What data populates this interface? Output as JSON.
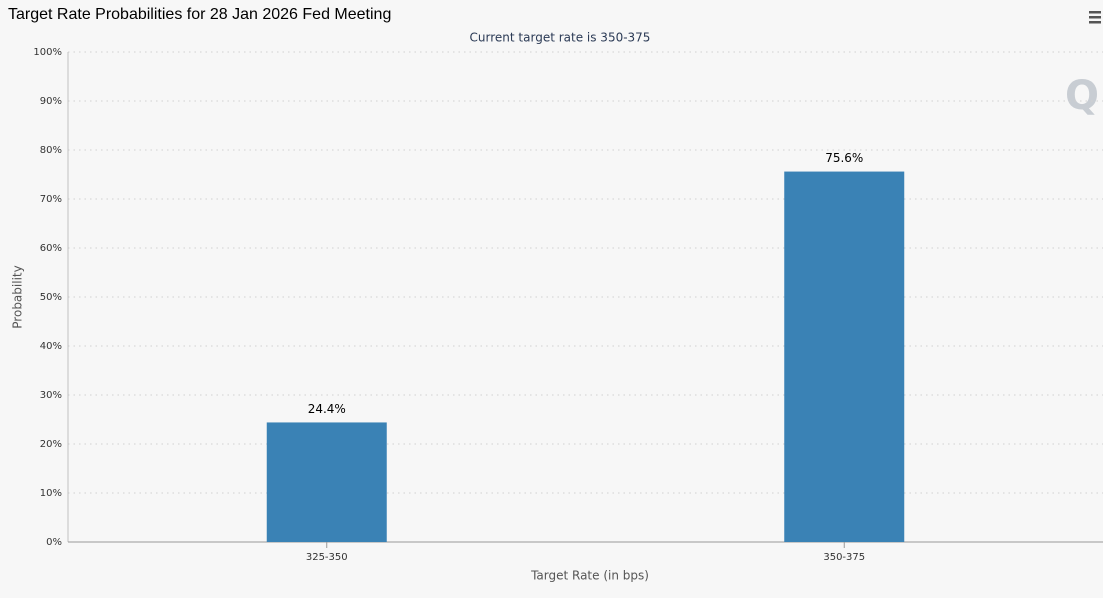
{
  "chart_data": {
    "type": "bar",
    "title": "Target Rate Probabilities for 28 Jan 2026 Fed Meeting",
    "subtitle": "Current target rate is 350-375",
    "x_label": "Target Rate (in bps)",
    "y_label": "Probability",
    "categories": [
      "325-350",
      "350-375"
    ],
    "values": [
      24.4,
      75.6
    ],
    "value_labels": [
      "24.4%",
      "75.6%"
    ],
    "color": "#3a82b5",
    "ylim": [
      0,
      100
    ],
    "yticks": [
      {
        "value": 0,
        "label": "0%"
      },
      {
        "value": 10,
        "label": "10%"
      },
      {
        "value": 20,
        "label": "20%"
      },
      {
        "value": 30,
        "label": "30%"
      },
      {
        "value": 40,
        "label": "40%"
      },
      {
        "value": 50,
        "label": "50%"
      },
      {
        "value": 60,
        "label": "60%"
      },
      {
        "value": 70,
        "label": "70%"
      },
      {
        "value": 80,
        "label": "80%"
      },
      {
        "value": 90,
        "label": "90%"
      },
      {
        "value": 100,
        "label": "100%"
      }
    ],
    "grid": true
  }
}
